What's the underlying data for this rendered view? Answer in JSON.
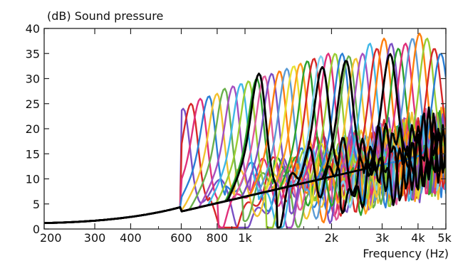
{
  "chart_data": {
    "type": "line",
    "title": "",
    "ylabel": "(dB)  Sound pressure",
    "xlabel": "Frequency  (Hz)",
    "x_scale": "log",
    "xlim": [
      200,
      5000
    ],
    "ylim": [
      0,
      40
    ],
    "grid": false,
    "x_ticks": [
      {
        "value": 200,
        "label": "200"
      },
      {
        "value": 300,
        "label": "300"
      },
      {
        "value": 400,
        "label": "400"
      },
      {
        "value": 600,
        "label": "600"
      },
      {
        "value": 800,
        "label": "800"
      },
      {
        "value": 1000,
        "label": "1k"
      },
      {
        "value": 2000,
        "label": "2k"
      },
      {
        "value": 3000,
        "label": "3k"
      },
      {
        "value": 4000,
        "label": "4k"
      },
      {
        "value": 5000,
        "label": "5k"
      }
    ],
    "x_minor_ticks": [
      500,
      700,
      900,
      1200,
      1400,
      1600,
      1800,
      2500,
      3500,
      4500
    ],
    "y_ticks": [
      0,
      5,
      10,
      15,
      20,
      25,
      30,
      35,
      40
    ],
    "series_resonance": {
      "peak_frequencies_hz": [
        610,
        650,
        700,
        750,
        800,
        850,
        910,
        970,
        1030,
        1100,
        1170,
        1240,
        1320,
        1400,
        1480,
        1560,
        1650,
        1740,
        1840,
        1950,
        2060,
        2180,
        2300,
        2430,
        2570,
        2720,
        2880,
        3050,
        3230,
        3420,
        3620,
        3830,
        4050,
        4300,
        4560,
        4800
      ],
      "peak_levels_db": [
        24,
        25,
        26,
        26.5,
        27,
        28,
        28.5,
        29,
        29.5,
        30,
        30.5,
        31,
        31.5,
        32,
        32.5,
        33,
        33.5,
        34,
        34.5,
        35,
        35,
        35,
        34.5,
        34,
        35,
        37,
        36,
        38,
        37,
        36,
        37,
        38,
        39,
        38,
        36,
        35
      ],
      "colors": [
        "#7a4fc4",
        "#d62728",
        "#e0307a",
        "#2a7fd6",
        "#f2c230",
        "#6ab04c",
        "#a64fbf",
        "#40b8e8",
        "#9acd32",
        "#2ca02c",
        "#e05a9a",
        "#7a4fc4",
        "#ff7f0e",
        "#5b9bd5",
        "#e8e030",
        "#ff9f1c",
        "#2ca02c",
        "#d62728",
        "#7fd0f0",
        "#e0307a",
        "#9acd32",
        "#2a7fd6",
        "#6ab04c",
        "#f2c230",
        "#a64fbf",
        "#40b8e8",
        "#d62728",
        "#ff7f0e",
        "#7a4fc4",
        "#2ca02c",
        "#e0307a",
        "#5b9bd5",
        "#ff7f0e",
        "#9acd32",
        "#d62728",
        "#2a7fd6"
      ],
      "highlight_color": "#000000",
      "highlight_peaks_hz": [
        1120,
        1860,
        2250,
        3200
      ]
    }
  }
}
